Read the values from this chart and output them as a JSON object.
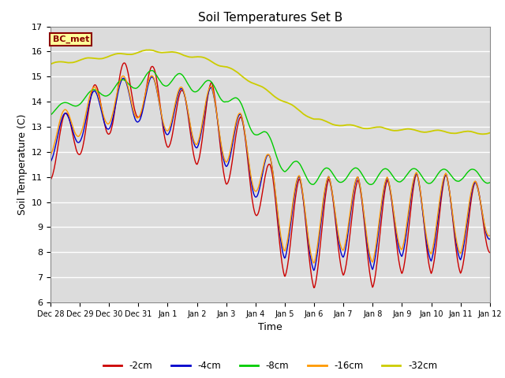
{
  "title": "Soil Temperatures Set B",
  "xlabel": "Time",
  "ylabel": "Soil Temperature (C)",
  "annotation": "BC_met",
  "ylim": [
    6.0,
    17.0
  ],
  "yticks": [
    6.0,
    7.0,
    8.0,
    9.0,
    10.0,
    11.0,
    12.0,
    13.0,
    14.0,
    15.0,
    16.0,
    17.0
  ],
  "xtick_labels": [
    "Dec 28",
    "Dec 29",
    "Dec 30",
    "Dec 31",
    "Jan 1",
    "Jan 2",
    "Jan 3",
    "Jan 4",
    "Jan 5",
    "Jan 6",
    "Jan 7",
    "Jan 8",
    "Jan 9",
    "Jan 10",
    "Jan 11",
    "Jan 12"
  ],
  "colors": {
    "-2cm": "#cc0000",
    "-4cm": "#0000cc",
    "-8cm": "#00cc00",
    "-16cm": "#ff9900",
    "-32cm": "#cccc00"
  },
  "background_color": "#dcdcdc",
  "title_fontsize": 11,
  "axis_fontsize": 9,
  "tick_fontsize": 8
}
